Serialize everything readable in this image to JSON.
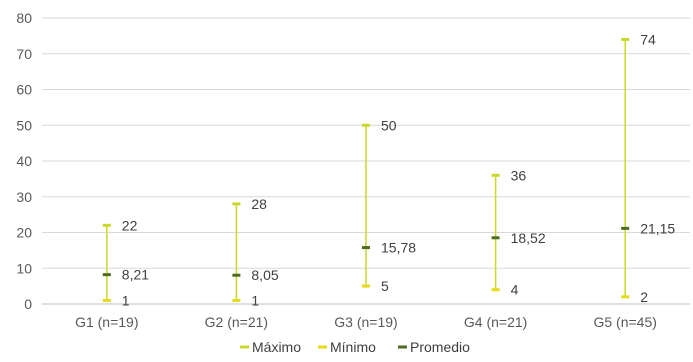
{
  "chart_data": {
    "type": "stock",
    "categories": [
      "G1 (n=19)",
      "G2 (n=21)",
      "G3 (n=19)",
      "G4 (n=21)",
      "G5 (n=45)"
    ],
    "series": [
      {
        "name": "Máximo",
        "values": [
          22,
          28,
          50,
          36,
          74
        ],
        "labels": [
          "22",
          "28",
          "50",
          "36",
          "74"
        ]
      },
      {
        "name": "Mínimo",
        "values": [
          1,
          1,
          5,
          4,
          2
        ],
        "labels": [
          "1",
          "1",
          "5",
          "4",
          "2"
        ]
      },
      {
        "name": "Promedio",
        "values": [
          8.21,
          8.05,
          15.78,
          18.52,
          21.15
        ],
        "labels": [
          "8,21",
          "8,05",
          "15,78",
          "18,52",
          "21,15"
        ]
      }
    ],
    "ylim": [
      0,
      80
    ],
    "yticks": [
      0,
      10,
      20,
      30,
      40,
      50,
      60,
      70,
      80
    ],
    "grid": true,
    "legend": "bottom",
    "colors": {
      "range_line": "#c9d82a",
      "max_marker": "#c9d82a",
      "min_marker": "#e5dc19",
      "avg_marker": "#4f6b1d",
      "grid": "#d9d9d9",
      "axis": "#bfbfbf"
    }
  }
}
